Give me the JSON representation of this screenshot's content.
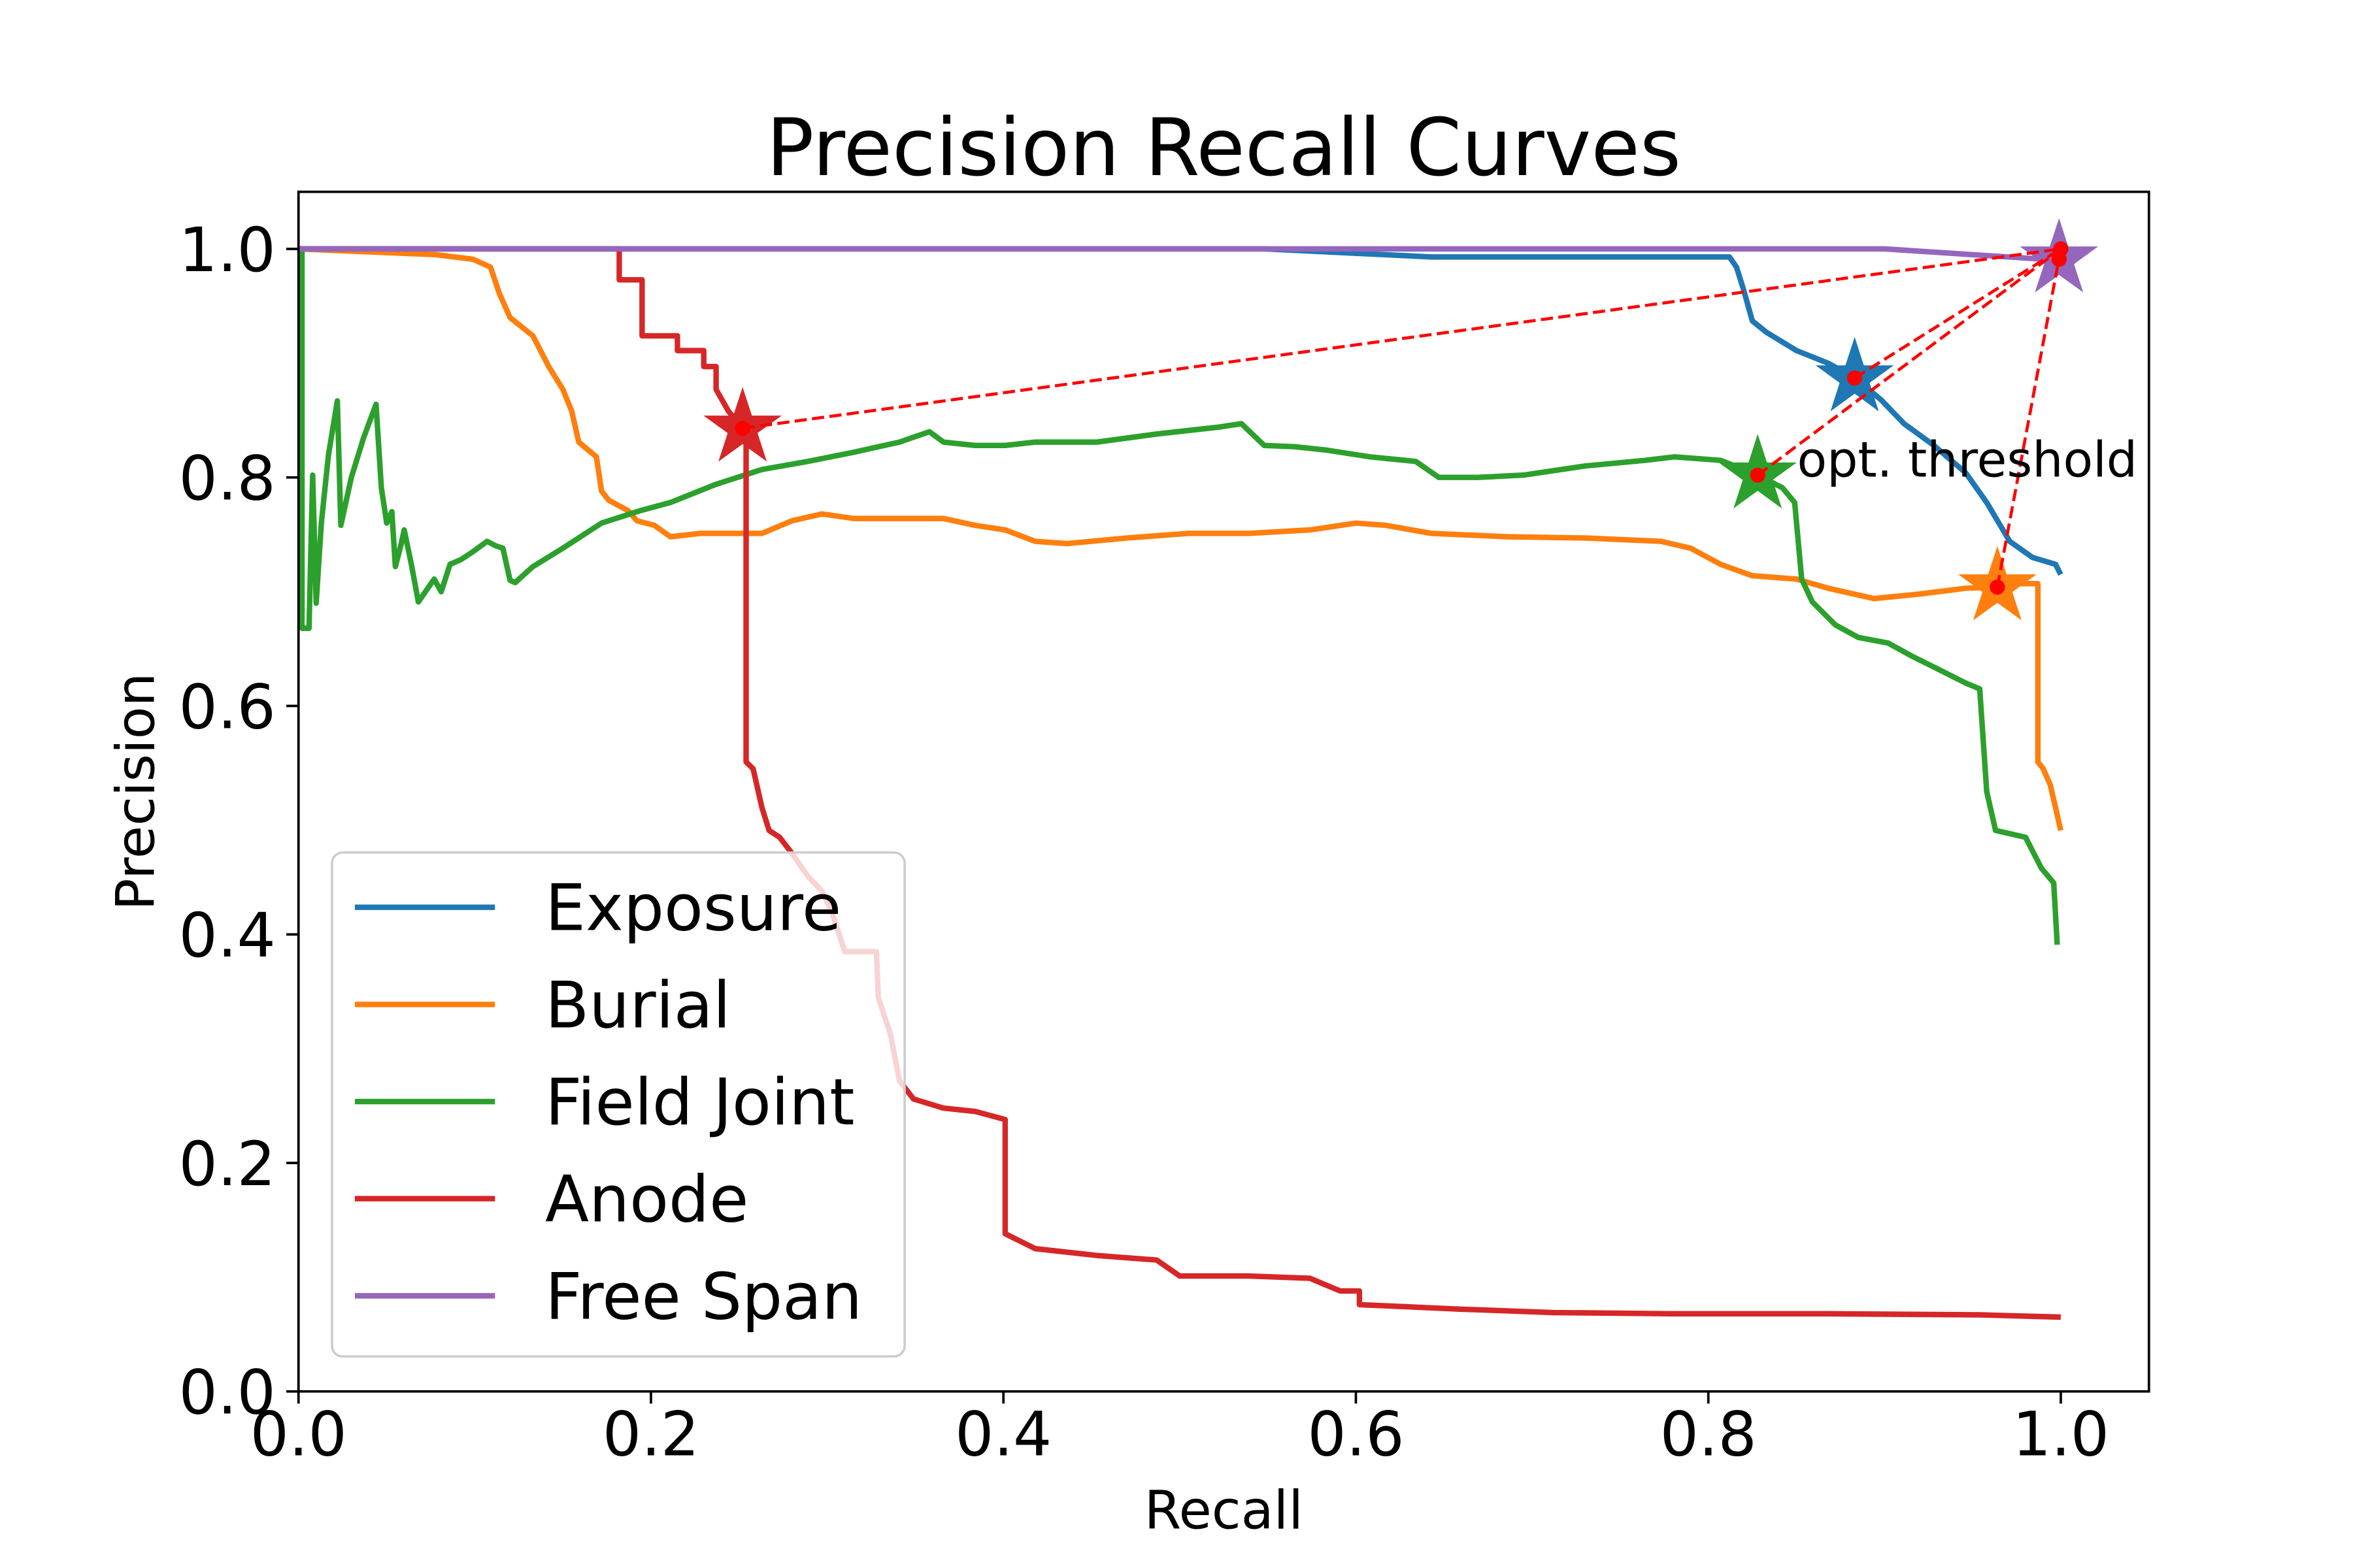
{
  "chart_data": {
    "type": "line",
    "title": "Precision Recall Curves",
    "xlabel": "Recall",
    "ylabel": "Precision",
    "xlim": [
      0,
      1.05
    ],
    "ylim": [
      0,
      1.05
    ],
    "xticks": [
      "0.0",
      "0.2",
      "0.4",
      "0.6",
      "0.8",
      "1.0"
    ],
    "yticks": [
      "0.0",
      "0.2",
      "0.4",
      "0.6",
      "0.8",
      "1.0"
    ],
    "grid": false,
    "legend_position": "lower left",
    "annotation": "opt. threshold",
    "highlight_color": "#ff0000",
    "reference_point": [
      1.0,
      1.0
    ],
    "series": [
      {
        "name": "Exposure",
        "color": "#1f77b4",
        "opt_threshold": [
          0.883,
          0.887
        ],
        "points": [
          [
            0.0,
            1.0
          ],
          [
            0.548,
            1.0
          ],
          [
            0.643,
            0.993
          ],
          [
            0.812,
            0.993
          ],
          [
            0.816,
            0.984
          ],
          [
            0.82,
            0.964
          ],
          [
            0.825,
            0.937
          ],
          [
            0.833,
            0.927
          ],
          [
            0.85,
            0.911
          ],
          [
            0.868,
            0.9
          ],
          [
            0.883,
            0.887
          ],
          [
            0.898,
            0.868
          ],
          [
            0.911,
            0.847
          ],
          [
            0.928,
            0.828
          ],
          [
            0.946,
            0.804
          ],
          [
            0.958,
            0.778
          ],
          [
            0.971,
            0.744
          ],
          [
            0.984,
            0.73
          ],
          [
            0.997,
            0.724
          ],
          [
            1.0,
            0.715
          ]
        ]
      },
      {
        "name": "Burial",
        "color": "#ff7f0e",
        "opt_threshold": [
          0.964,
          0.704
        ],
        "points": [
          [
            0.0,
            1.0
          ],
          [
            0.078,
            0.995
          ],
          [
            0.099,
            0.991
          ],
          [
            0.109,
            0.984
          ],
          [
            0.114,
            0.961
          ],
          [
            0.12,
            0.94
          ],
          [
            0.133,
            0.924
          ],
          [
            0.142,
            0.897
          ],
          [
            0.15,
            0.877
          ],
          [
            0.155,
            0.858
          ],
          [
            0.159,
            0.831
          ],
          [
            0.169,
            0.818
          ],
          [
            0.172,
            0.788
          ],
          [
            0.176,
            0.78
          ],
          [
            0.187,
            0.771
          ],
          [
            0.192,
            0.762
          ],
          [
            0.202,
            0.758
          ],
          [
            0.211,
            0.748
          ],
          [
            0.228,
            0.751
          ],
          [
            0.245,
            0.751
          ],
          [
            0.263,
            0.751
          ],
          [
            0.28,
            0.762
          ],
          [
            0.297,
            0.768
          ],
          [
            0.315,
            0.764
          ],
          [
            0.341,
            0.764
          ],
          [
            0.366,
            0.764
          ],
          [
            0.384,
            0.758
          ],
          [
            0.401,
            0.754
          ],
          [
            0.418,
            0.744
          ],
          [
            0.436,
            0.742
          ],
          [
            0.47,
            0.747
          ],
          [
            0.505,
            0.751
          ],
          [
            0.539,
            0.751
          ],
          [
            0.574,
            0.754
          ],
          [
            0.6,
            0.76
          ],
          [
            0.617,
            0.758
          ],
          [
            0.643,
            0.751
          ],
          [
            0.686,
            0.748
          ],
          [
            0.73,
            0.747
          ],
          [
            0.773,
            0.744
          ],
          [
            0.79,
            0.738
          ],
          [
            0.807,
            0.724
          ],
          [
            0.825,
            0.714
          ],
          [
            0.85,
            0.711
          ],
          [
            0.868,
            0.703
          ],
          [
            0.894,
            0.694
          ],
          [
            0.92,
            0.698
          ],
          [
            0.946,
            0.703
          ],
          [
            0.964,
            0.704
          ],
          [
            0.971,
            0.707
          ],
          [
            0.987,
            0.707
          ],
          [
            0.987,
            0.551
          ],
          [
            0.99,
            0.545
          ],
          [
            0.994,
            0.531
          ],
          [
            0.997,
            0.511
          ],
          [
            1.0,
            0.491
          ]
        ]
      },
      {
        "name": "Field Joint",
        "color": "#2ca02c",
        "opt_threshold": [
          0.828,
          0.802
        ],
        "points": [
          [
            0.002,
            1.0
          ],
          [
            0.002,
            0.668
          ],
          [
            0.006,
            0.668
          ],
          [
            0.008,
            0.802
          ],
          [
            0.01,
            0.69
          ],
          [
            0.013,
            0.76
          ],
          [
            0.017,
            0.82
          ],
          [
            0.022,
            0.867
          ],
          [
            0.024,
            0.758
          ],
          [
            0.03,
            0.8
          ],
          [
            0.037,
            0.835
          ],
          [
            0.044,
            0.864
          ],
          [
            0.047,
            0.791
          ],
          [
            0.05,
            0.76
          ],
          [
            0.053,
            0.77
          ],
          [
            0.055,
            0.722
          ],
          [
            0.058,
            0.74
          ],
          [
            0.06,
            0.754
          ],
          [
            0.064,
            0.724
          ],
          [
            0.068,
            0.691
          ],
          [
            0.072,
            0.7
          ],
          [
            0.077,
            0.711
          ],
          [
            0.081,
            0.7
          ],
          [
            0.086,
            0.724
          ],
          [
            0.092,
            0.728
          ],
          [
            0.099,
            0.735
          ],
          [
            0.107,
            0.744
          ],
          [
            0.112,
            0.74
          ],
          [
            0.116,
            0.738
          ],
          [
            0.12,
            0.71
          ],
          [
            0.123,
            0.708
          ],
          [
            0.128,
            0.715
          ],
          [
            0.133,
            0.722
          ],
          [
            0.15,
            0.738
          ],
          [
            0.172,
            0.76
          ],
          [
            0.194,
            0.771
          ],
          [
            0.211,
            0.778
          ],
          [
            0.237,
            0.794
          ],
          [
            0.263,
            0.807
          ],
          [
            0.289,
            0.814
          ],
          [
            0.315,
            0.822
          ],
          [
            0.341,
            0.831
          ],
          [
            0.358,
            0.84
          ],
          [
            0.366,
            0.831
          ],
          [
            0.384,
            0.828
          ],
          [
            0.401,
            0.828
          ],
          [
            0.418,
            0.831
          ],
          [
            0.453,
            0.831
          ],
          [
            0.487,
            0.838
          ],
          [
            0.522,
            0.844
          ],
          [
            0.535,
            0.847
          ],
          [
            0.548,
            0.828
          ],
          [
            0.565,
            0.827
          ],
          [
            0.583,
            0.824
          ],
          [
            0.608,
            0.818
          ],
          [
            0.634,
            0.814
          ],
          [
            0.647,
            0.8
          ],
          [
            0.669,
            0.8
          ],
          [
            0.695,
            0.802
          ],
          [
            0.73,
            0.81
          ],
          [
            0.764,
            0.815
          ],
          [
            0.781,
            0.818
          ],
          [
            0.807,
            0.815
          ],
          [
            0.825,
            0.804
          ],
          [
            0.828,
            0.802
          ],
          [
            0.842,
            0.791
          ],
          [
            0.849,
            0.778
          ],
          [
            0.853,
            0.711
          ],
          [
            0.859,
            0.691
          ],
          [
            0.872,
            0.671
          ],
          [
            0.885,
            0.66
          ],
          [
            0.902,
            0.655
          ],
          [
            0.915,
            0.644
          ],
          [
            0.928,
            0.634
          ],
          [
            0.946,
            0.62
          ],
          [
            0.954,
            0.615
          ],
          [
            0.958,
            0.525
          ],
          [
            0.963,
            0.491
          ],
          [
            0.98,
            0.485
          ],
          [
            0.989,
            0.458
          ],
          [
            0.996,
            0.445
          ],
          [
            0.998,
            0.391
          ]
        ]
      },
      {
        "name": "Anode",
        "color": "#d62728",
        "opt_threshold": [
          0.252,
          0.843
        ],
        "points": [
          [
            0.0,
            1.0
          ],
          [
            0.182,
            1.0
          ],
          [
            0.182,
            0.973
          ],
          [
            0.195,
            0.973
          ],
          [
            0.195,
            0.924
          ],
          [
            0.215,
            0.924
          ],
          [
            0.215,
            0.911
          ],
          [
            0.23,
            0.911
          ],
          [
            0.23,
            0.897
          ],
          [
            0.237,
            0.897
          ],
          [
            0.237,
            0.877
          ],
          [
            0.244,
            0.858
          ],
          [
            0.252,
            0.843
          ],
          [
            0.254,
            0.843
          ],
          [
            0.254,
            0.551
          ],
          [
            0.258,
            0.545
          ],
          [
            0.263,
            0.511
          ],
          [
            0.267,
            0.491
          ],
          [
            0.273,
            0.485
          ],
          [
            0.28,
            0.471
          ],
          [
            0.289,
            0.451
          ],
          [
            0.297,
            0.438
          ],
          [
            0.303,
            0.418
          ],
          [
            0.31,
            0.385
          ],
          [
            0.328,
            0.385
          ],
          [
            0.329,
            0.345
          ],
          [
            0.336,
            0.312
          ],
          [
            0.341,
            0.272
          ],
          [
            0.349,
            0.256
          ],
          [
            0.366,
            0.248
          ],
          [
            0.384,
            0.245
          ],
          [
            0.401,
            0.238
          ],
          [
            0.401,
            0.138
          ],
          [
            0.418,
            0.125
          ],
          [
            0.453,
            0.119
          ],
          [
            0.487,
            0.115
          ],
          [
            0.5,
            0.101
          ],
          [
            0.539,
            0.101
          ],
          [
            0.574,
            0.099
          ],
          [
            0.591,
            0.088
          ],
          [
            0.602,
            0.088
          ],
          [
            0.602,
            0.076
          ],
          [
            0.66,
            0.072
          ],
          [
            0.712,
            0.069
          ],
          [
            0.781,
            0.068
          ],
          [
            0.868,
            0.068
          ],
          [
            0.954,
            0.067
          ],
          [
            1.0,
            0.065
          ]
        ]
      },
      {
        "name": "Free Span",
        "color": "#9467bd",
        "opt_threshold": [
          0.999,
          0.991
        ],
        "points": [
          [
            0.0,
            1.0
          ],
          [
            0.9,
            1.0
          ],
          [
            0.95,
            0.995
          ],
          [
            1.0,
            0.99
          ]
        ]
      }
    ]
  }
}
